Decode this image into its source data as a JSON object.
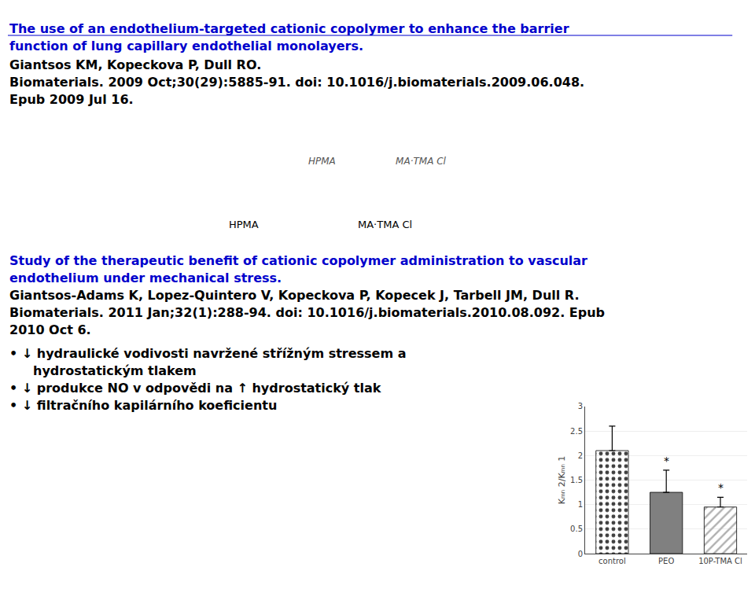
{
  "chart_data": {
    "type": "bar",
    "categories": [
      "control",
      "PEO",
      "10P-TMA Cl"
    ],
    "values": [
      2.1,
      1.25,
      0.95
    ],
    "errors_upper": [
      0.5,
      0.45,
      0.2
    ],
    "colors": [
      "#404040",
      "#808080",
      "#b0b0b0"
    ],
    "ylabel": "Kₘₙ 2/Kₘₙ 1",
    "ylim": [
      0,
      3
    ],
    "yticks": [
      0,
      0.5,
      1,
      1.5,
      2,
      2.5,
      3
    ],
    "grid": true,
    "annotations": [
      {
        "text": "The use of an endothelium-targeted cationic copolymer to enhance the barrier",
        "color": "#0000CC"
      },
      {
        "text": "function of lung capillary endothelial monolayers.",
        "color": "#0000CC"
      },
      {
        "text": "Giantsos KM, Kopeckova P, Dull RO.",
        "color": "#000000"
      },
      {
        "text": "Biomaterials. 2009 Oct;30(29):5885-91. doi: 10.1016/j.biomaterials.2009.06.048.",
        "color": "#000000"
      },
      {
        "text": "Epub 2009 Jul 16.",
        "color": "#000000"
      },
      {
        "text": "HPMA                    MA·TMA Cl",
        "color": "#555555"
      },
      {
        "text": "HPMA",
        "color": "#000000"
      },
      {
        "text": "MA·TMA Cl",
        "color": "#000000"
      },
      {
        "text": "Study of the therapeutic benefit of cationic copolymer administration to vascular",
        "color": "#0000CC"
      },
      {
        "text": "endothelium under mechanical stress.",
        "color": "#0000CC"
      },
      {
        "text": "Giantsos-Adams K, Lopez-Quintero V, Kopeckova P, Kopecek J, Tarbell JM, Dull R.",
        "color": "#000000"
      },
      {
        "text": "Biomaterials. 2011 Jan;32(1):288-94. doi: 10.1016/j.biomaterials.2010.08.092. Epub",
        "color": "#000000"
      },
      {
        "text": "2010 Oct 6.",
        "color": "#000000"
      },
      {
        "text": "• ↓ hydraulické vodivosti navržené střížným stressem a",
        "color": "#000000"
      },
      {
        "text": "hydrostatickým tlakem",
        "color": "#000000"
      },
      {
        "text": "• ↓ produkce NO v odpovědi na ↑ hydrostatický tlak",
        "color": "#000000"
      },
      {
        "text": "• ↓ filtračního kapilárního koeficientu",
        "color": "#000000"
      },
      {
        "text": "*",
        "category": "PEO",
        "color": "#000000"
      },
      {
        "text": "*",
        "category": "10P-TMA Cl",
        "color": "#000000"
      }
    ]
  }
}
